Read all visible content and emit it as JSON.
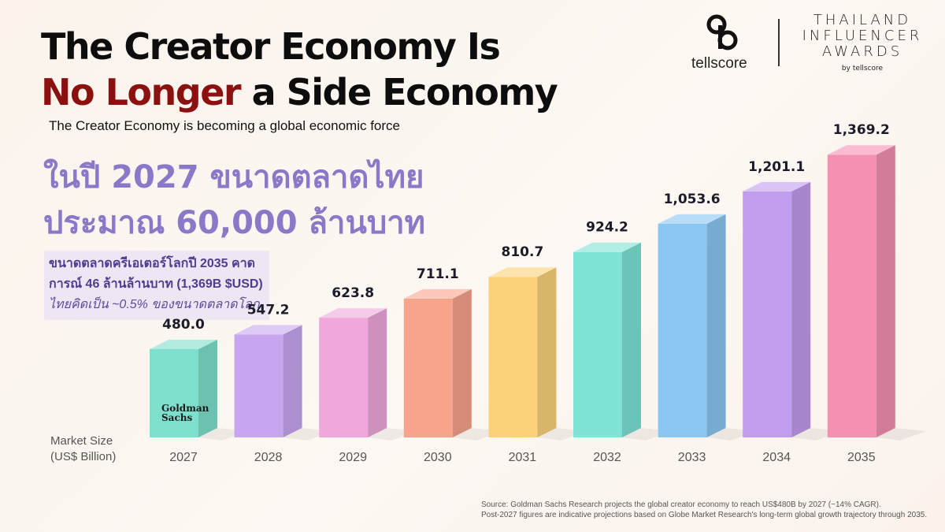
{
  "header": {
    "title_line1": "The Creator Economy Is",
    "title_accent": "No Longer",
    "title_line2_rest": " a Side Economy",
    "subtitle": "The Creator Economy is becoming a global economic force"
  },
  "thai": {
    "headline_line1": "ในปี 2027 ขนาดตลาดไทย",
    "headline_line2": "ประมาณ 60,000 ล้านบาท",
    "note_line1": "ขนาดตลาดครีเอเตอร์โลกปี 2035 คาด",
    "note_line2": "การณ์ 46 ล้านล้านบาท (1,369B $USD)",
    "note_line3": "ไทยคิดเป็น ~0.5% ของขนาดตลาดโลก"
  },
  "logos": {
    "tellscore": "tellscore",
    "award_line1": "THAILAND",
    "award_line2": "INFLUENCER",
    "award_line3": "AWARDS",
    "award_by": "by tellscore",
    "goldman": "Goldman\nSachs",
    "goldman_line1": "Goldman",
    "goldman_line2": "Sachs"
  },
  "chart_data": {
    "type": "bar",
    "categories": [
      "2027",
      "2028",
      "2029",
      "2030",
      "2031",
      "2032",
      "2033",
      "2034",
      "2035"
    ],
    "values": [
      480.0,
      547.2,
      623.8,
      711.1,
      810.7,
      924.2,
      1053.6,
      1201.1,
      1369.2
    ],
    "value_labels": [
      "480.0",
      "547.2",
      "623.8",
      "711.1",
      "810.7",
      "924.2",
      "1,053.6",
      "1,201.1",
      "1,369.2"
    ],
    "ylabel_line1": "Market Size",
    "ylabel_line2": "(US$ Billion)",
    "colors": [
      "#7ee0cc",
      "#c7a6ef",
      "#f0a8dc",
      "#f8a38b",
      "#fbd27a",
      "#7fe3d6",
      "#8cc7f2",
      "#c29cef",
      "#f590b2"
    ]
  },
  "source": {
    "line1": "Source: Goldman Sachs Research projects the global creator economy to reach US$480B by 2027 (~14% CAGR).",
    "line2": "Post-2027 figures are indicative projections based on Globe Market Research's long-term global growth trajectory through 2035."
  }
}
